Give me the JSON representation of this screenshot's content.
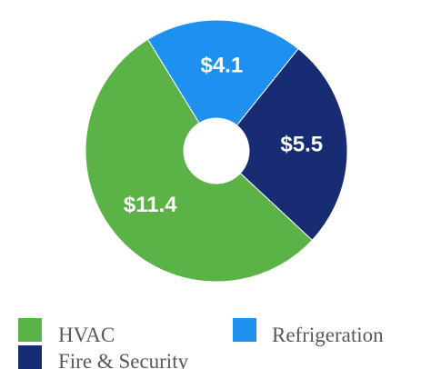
{
  "chart_data": {
    "type": "pie",
    "donut": true,
    "categories": [
      "HVAC",
      "Refrigeration",
      "Fire & Security"
    ],
    "values": [
      11.4,
      4.1,
      5.5
    ],
    "value_labels": [
      "$11.4",
      "$4.1",
      "$5.5"
    ],
    "colors": [
      "#5BB246",
      "#1E90F0",
      "#172C72"
    ],
    "title": "",
    "legend": {
      "position": "bottom",
      "items": [
        {
          "label": "HVAC",
          "color": "#5BB246"
        },
        {
          "label": "Refrigeration",
          "color": "#1E90F0"
        },
        {
          "label": "Fire & Security",
          "color": "#172C72"
        }
      ]
    }
  }
}
